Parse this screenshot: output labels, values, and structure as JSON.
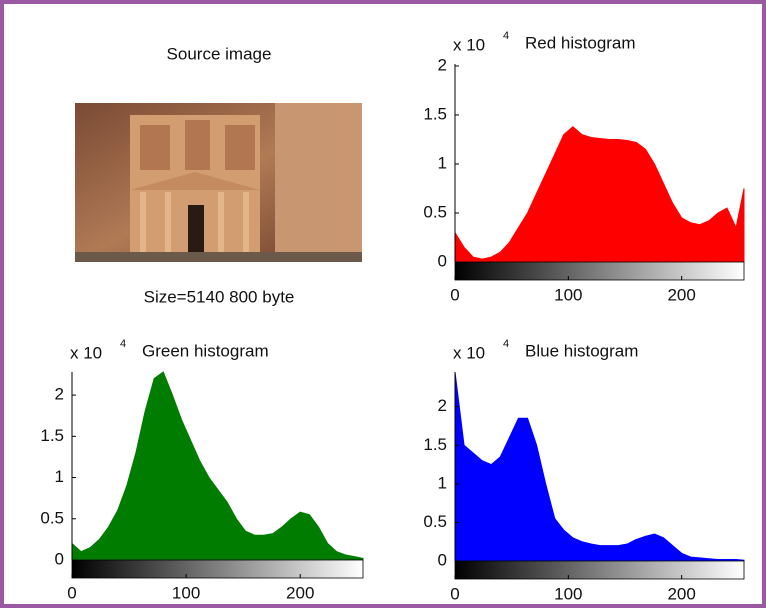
{
  "source_image": {
    "title": "Source image",
    "caption": "Size=5140 800 byte"
  },
  "chart_data": [
    {
      "type": "area",
      "title": "Red histogram",
      "y_multiplier": "x 10",
      "y_exponent": "4",
      "color": "#ff0000",
      "x": [
        0,
        8,
        16,
        24,
        32,
        40,
        48,
        56,
        64,
        72,
        80,
        88,
        96,
        104,
        112,
        120,
        128,
        136,
        144,
        152,
        160,
        168,
        176,
        184,
        192,
        200,
        208,
        216,
        224,
        232,
        240,
        248,
        255
      ],
      "values": [
        0.3,
        0.15,
        0.05,
        0.03,
        0.05,
        0.1,
        0.2,
        0.35,
        0.5,
        0.7,
        0.9,
        1.1,
        1.3,
        1.38,
        1.3,
        1.27,
        1.26,
        1.25,
        1.25,
        1.24,
        1.22,
        1.15,
        1.0,
        0.8,
        0.6,
        0.45,
        0.4,
        0.38,
        0.42,
        0.5,
        0.55,
        0.35,
        0.75
      ],
      "xlim": [
        0,
        255
      ],
      "ylim": [
        0,
        2.02
      ],
      "xticks": [
        0,
        100,
        200
      ],
      "yticks": [
        0,
        0.5,
        1,
        1.5,
        2
      ]
    },
    {
      "type": "area",
      "title": "Green histogram",
      "y_multiplier": "x 10",
      "y_exponent": "4",
      "color": "#007d00",
      "x": [
        0,
        8,
        16,
        24,
        32,
        40,
        48,
        56,
        64,
        72,
        80,
        88,
        96,
        104,
        112,
        120,
        128,
        136,
        144,
        152,
        160,
        168,
        176,
        184,
        192,
        200,
        208,
        216,
        224,
        232,
        240,
        248,
        255
      ],
      "values": [
        0.2,
        0.1,
        0.15,
        0.25,
        0.4,
        0.6,
        0.9,
        1.3,
        1.8,
        2.2,
        2.28,
        2.0,
        1.7,
        1.45,
        1.2,
        1.0,
        0.85,
        0.7,
        0.5,
        0.35,
        0.3,
        0.3,
        0.32,
        0.4,
        0.5,
        0.58,
        0.55,
        0.4,
        0.2,
        0.1,
        0.06,
        0.04,
        0.02
      ],
      "xlim": [
        0,
        255
      ],
      "ylim": [
        0,
        2.28
      ],
      "xticks": [
        0,
        100,
        200
      ],
      "yticks": [
        0,
        0.5,
        1,
        1.5,
        2
      ]
    },
    {
      "type": "area",
      "title": "Blue histogram",
      "y_multiplier": "x 10",
      "y_exponent": "4",
      "color": "#0000ff",
      "x": [
        0,
        8,
        16,
        24,
        32,
        40,
        48,
        56,
        64,
        72,
        80,
        88,
        96,
        104,
        112,
        120,
        128,
        136,
        144,
        152,
        160,
        168,
        176,
        184,
        192,
        200,
        208,
        216,
        224,
        232,
        240,
        248,
        255
      ],
      "values": [
        2.45,
        1.5,
        1.4,
        1.3,
        1.25,
        1.35,
        1.6,
        1.85,
        1.85,
        1.5,
        1.0,
        0.55,
        0.4,
        0.3,
        0.25,
        0.22,
        0.2,
        0.2,
        0.2,
        0.22,
        0.28,
        0.32,
        0.35,
        0.3,
        0.2,
        0.1,
        0.05,
        0.04,
        0.03,
        0.02,
        0.02,
        0.02,
        0.01
      ],
      "xlim": [
        0,
        255
      ],
      "ylim": [
        0,
        2.45
      ],
      "xticks": [
        0,
        100,
        200
      ],
      "yticks": [
        0,
        0.5,
        1,
        1.5,
        2
      ]
    }
  ]
}
